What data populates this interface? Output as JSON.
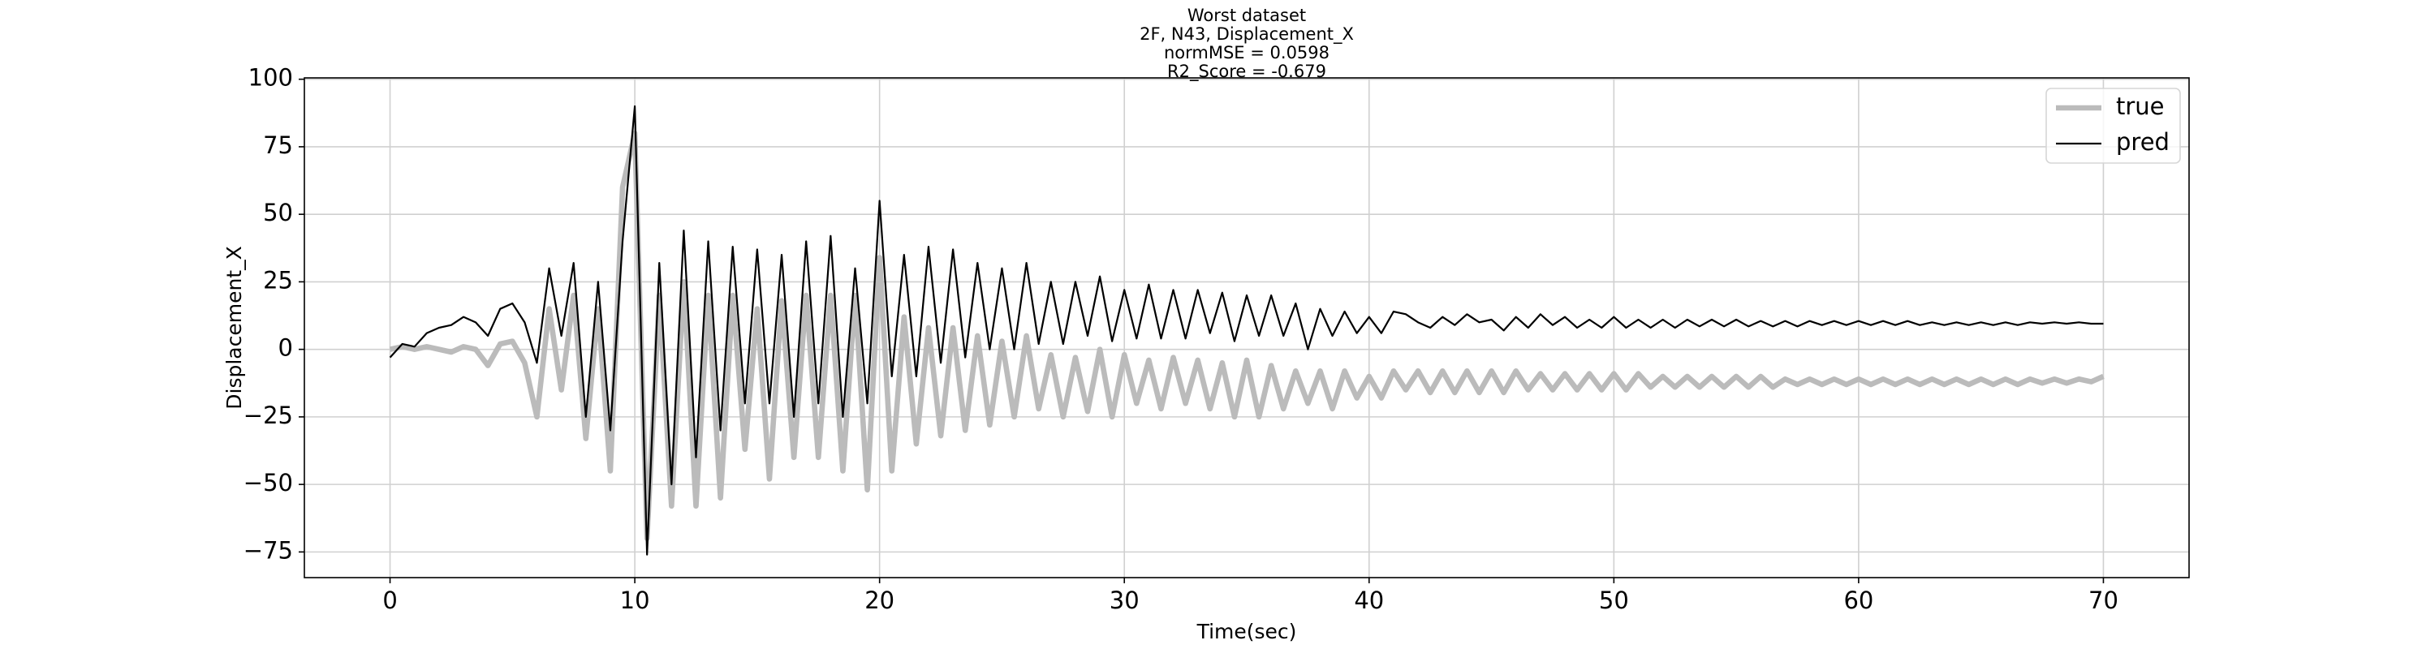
{
  "chart_data": {
    "type": "line",
    "title_lines": [
      "Worst dataset",
      "2F, N43, Displacement_X",
      "normMSE = 0.0598",
      "R2_Score = -0.679"
    ],
    "x_label": "Time(sec)",
    "y_label": "Displacement_X",
    "xlim": [
      -3.5,
      73.5
    ],
    "ylim": [
      -84.5,
      100.5
    ],
    "xticks": [
      0,
      10,
      20,
      30,
      40,
      50,
      60,
      70
    ],
    "yticks": [
      {
        "value": -75,
        "label": "−75"
      },
      {
        "value": -50,
        "label": "−50"
      },
      {
        "value": -25,
        "label": "−25"
      },
      0,
      25,
      50,
      75,
      100
    ],
    "grid": true,
    "legend": "upper right",
    "x": [
      0,
      0.5,
      1,
      1.5,
      2,
      2.5,
      3,
      3.5,
      4,
      4.5,
      5,
      5.5,
      6,
      6.5,
      7,
      7.5,
      8,
      8.5,
      9,
      9.5,
      10,
      10.5,
      11,
      11.5,
      12,
      12.5,
      13,
      13.5,
      14,
      14.5,
      15,
      15.5,
      16,
      16.5,
      17,
      17.5,
      18,
      18.5,
      19,
      19.5,
      20,
      20.5,
      21,
      21.5,
      22,
      22.5,
      23,
      23.5,
      24,
      24.5,
      25,
      25.5,
      26,
      26.5,
      27,
      27.5,
      28,
      28.5,
      29,
      29.5,
      30,
      30.5,
      31,
      31.5,
      32,
      32.5,
      33,
      33.5,
      34,
      34.5,
      35,
      35.5,
      36,
      36.5,
      37,
      37.5,
      38,
      38.5,
      39,
      39.5,
      40,
      40.5,
      41,
      41.5,
      42,
      42.5,
      43,
      43.5,
      44,
      44.5,
      45,
      45.5,
      46,
      46.5,
      47,
      47.5,
      48,
      48.5,
      49,
      49.5,
      50,
      50.5,
      51,
      51.5,
      52,
      52.5,
      53,
      53.5,
      54,
      54.5,
      55,
      55.5,
      56,
      56.5,
      57,
      57.5,
      58,
      58.5,
      59,
      59.5,
      60,
      60.5,
      61,
      61.5,
      62,
      62.5,
      63,
      63.5,
      64,
      64.5,
      65,
      65.5,
      66,
      66.5,
      67,
      67.5,
      68,
      68.5,
      69,
      69.5,
      70
    ],
    "series": [
      {
        "name": "true",
        "color": "#bbbbbb",
        "width": 3,
        "values": [
          0,
          1,
          0,
          1,
          0,
          -1,
          1,
          0,
          -6,
          2,
          3,
          -5,
          -25,
          15,
          -15,
          20,
          -33,
          15,
          -45,
          60,
          80,
          -70,
          20,
          -58,
          25,
          -58,
          20,
          -55,
          20,
          -37,
          15,
          -48,
          18,
          -40,
          20,
          -40,
          20,
          -45,
          20,
          -52,
          34,
          -45,
          12,
          -35,
          8,
          -32,
          8,
          -30,
          5,
          -28,
          3,
          -25,
          5,
          -22,
          -2,
          -25,
          -3,
          -23,
          0,
          -25,
          -2,
          -20,
          -4,
          -22,
          -3,
          -20,
          -4,
          -22,
          -5,
          -25,
          -4,
          -25,
          -6,
          -22,
          -8,
          -20,
          -8,
          -22,
          -8,
          -18,
          -10,
          -18,
          -8,
          -15,
          -8,
          -16,
          -8,
          -16,
          -8,
          -16,
          -8,
          -16,
          -8,
          -15,
          -9,
          -15,
          -9,
          -15,
          -9,
          -15,
          -9,
          -15,
          -9,
          -14,
          -10,
          -14,
          -10,
          -14,
          -10,
          -14,
          -10,
          -14,
          -10,
          -14,
          -11,
          -13,
          -11,
          -13,
          -11,
          -13,
          -11,
          -13,
          -11,
          -13,
          -11,
          -13,
          -11,
          -13,
          -11,
          -13,
          -11,
          -13,
          -11,
          -13,
          -11,
          -12.5,
          -11,
          -12.5,
          -11,
          -12,
          -10
        ]
      },
      {
        "name": "pred",
        "color": "#000000",
        "width": 1,
        "values": [
          -3,
          2,
          1,
          6,
          8,
          9,
          12,
          10,
          5,
          15,
          17,
          10,
          -5,
          30,
          5,
          32,
          -25,
          25,
          -30,
          40,
          90,
          -76,
          32,
          -50,
          44,
          -40,
          40,
          -30,
          38,
          -20,
          37,
          -20,
          35,
          -25,
          40,
          -20,
          42,
          -25,
          30,
          -20,
          55,
          -10,
          35,
          -10,
          38,
          -5,
          37,
          -3,
          32,
          0,
          30,
          0,
          32,
          2,
          25,
          2,
          25,
          5,
          27,
          3,
          22,
          4,
          24,
          4,
          22,
          4,
          22,
          6,
          21,
          3,
          20,
          5,
          20,
          5,
          17,
          0,
          15,
          5,
          14,
          6,
          12,
          6,
          14,
          13,
          10,
          8,
          12,
          9,
          13,
          10,
          11,
          7,
          12,
          8,
          13,
          9,
          12,
          8,
          11,
          8,
          12,
          8,
          11,
          8,
          11,
          8,
          11,
          8.5,
          11,
          8.5,
          11,
          8.5,
          10.5,
          8.5,
          10.5,
          8.5,
          10.5,
          9,
          10.5,
          9,
          10.5,
          9,
          10.5,
          9,
          10.5,
          9,
          10,
          9,
          10,
          9,
          10,
          9,
          10,
          9,
          10,
          9.5,
          10,
          9.5,
          10,
          9.5,
          9.5
        ]
      }
    ]
  }
}
